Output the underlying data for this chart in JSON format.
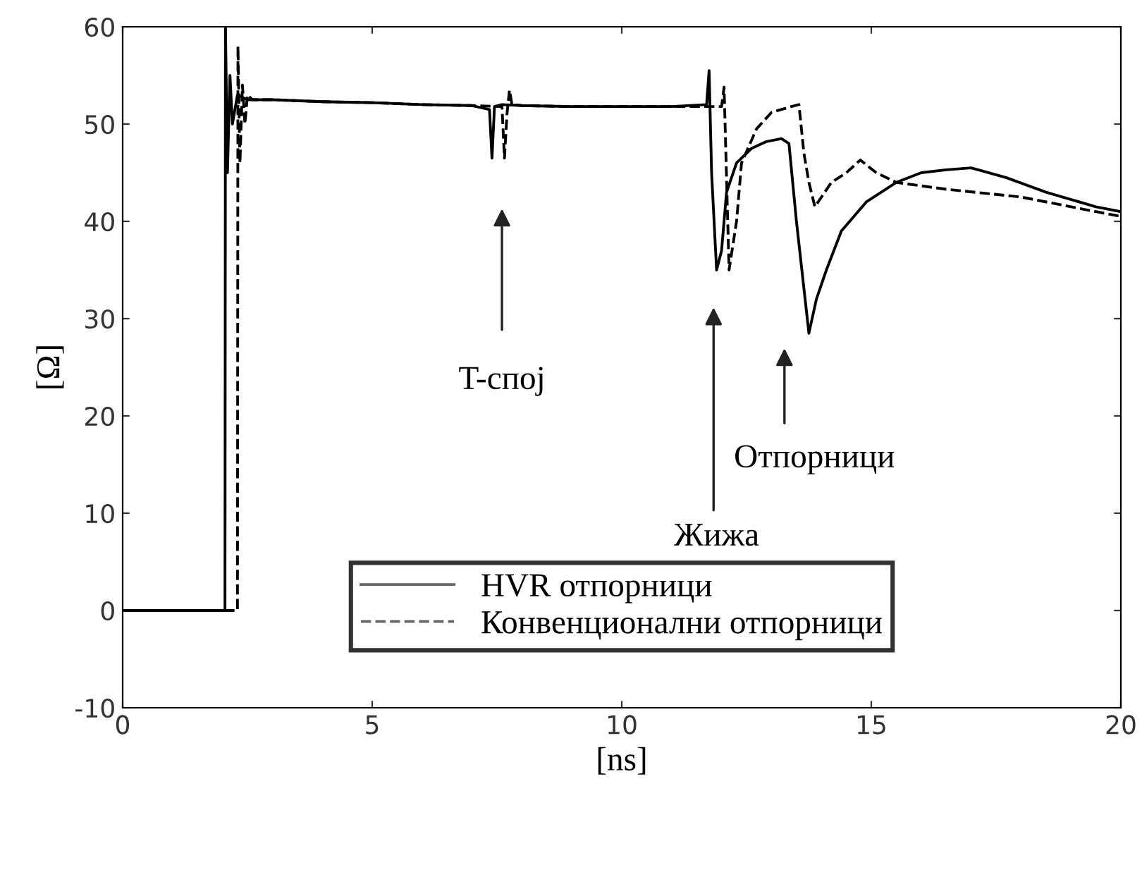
{
  "chart_data": {
    "type": "line",
    "xlabel": "[ns]",
    "ylabel": "[Ω]",
    "xlim": [
      0,
      20
    ],
    "ylim": [
      -10,
      60
    ],
    "xticks": [
      0,
      5,
      10,
      15,
      20
    ],
    "yticks": [
      -10,
      0,
      10,
      20,
      30,
      40,
      50,
      60
    ],
    "grid": false,
    "legend": "bottom",
    "marker": "none",
    "series": [
      {
        "name": "HVR отпорници",
        "color": "#000000",
        "line_style": "solid",
        "x": [
          0,
          2.05,
          2.06,
          2.1,
          2.15,
          2.2,
          2.3,
          2.5,
          3,
          4,
          5,
          6,
          7,
          7.35,
          7.4,
          7.45,
          7.6,
          8,
          9,
          10,
          11,
          11.7,
          11.75,
          11.8,
          11.9,
          12.0,
          12.1,
          12.3,
          12.6,
          12.9,
          13.2,
          13.35,
          13.5,
          13.75,
          13.9,
          14.1,
          14.4,
          14.9,
          15.5,
          16.0,
          16.5,
          17.0,
          17.7,
          18.5,
          19.5,
          20
        ],
        "values": [
          0,
          0,
          60,
          45,
          55,
          50,
          53,
          52.5,
          52.5,
          52.3,
          52.2,
          52,
          51.9,
          51.5,
          46.5,
          51.8,
          52,
          51.9,
          51.8,
          51.8,
          51.8,
          52,
          55.5,
          45,
          35,
          37,
          43,
          46,
          47.5,
          48.2,
          48.5,
          48,
          40,
          28.5,
          32,
          35,
          39,
          42,
          44,
          45,
          45.3,
          45.5,
          44.5,
          43,
          41.5,
          41
        ]
      },
      {
        "name": "Конвенционални отпорници",
        "color": "#000000",
        "line_style": "dashed",
        "x": [
          0,
          2.3,
          2.31,
          2.35,
          2.4,
          2.45,
          2.5,
          2.6,
          3,
          4,
          5,
          6,
          7,
          7.6,
          7.65,
          7.7,
          7.75,
          7.8,
          8,
          9,
          10,
          11,
          12.0,
          12.05,
          12.15,
          12.3,
          12.4,
          12.7,
          13.0,
          13.4,
          13.55,
          13.65,
          13.75,
          13.87,
          14.2,
          14.5,
          14.78,
          15.1,
          15.5,
          16.5,
          18,
          19.5,
          20
        ],
        "values": [
          0,
          0,
          58,
          46,
          54,
          50,
          53,
          52.5,
          52.5,
          52.3,
          52.2,
          52,
          51.9,
          51.8,
          46.5,
          51,
          53.5,
          52,
          51.9,
          51.8,
          51.8,
          51.8,
          51.8,
          53.8,
          35,
          40,
          46,
          49.5,
          51.2,
          51.8,
          52,
          47,
          44,
          41.5,
          44,
          45,
          46.3,
          45,
          44,
          43.3,
          42.5,
          41,
          40.5
        ]
      }
    ],
    "annotations": [
      "T-спој",
      "Жижа",
      "Отпорници"
    ]
  }
}
